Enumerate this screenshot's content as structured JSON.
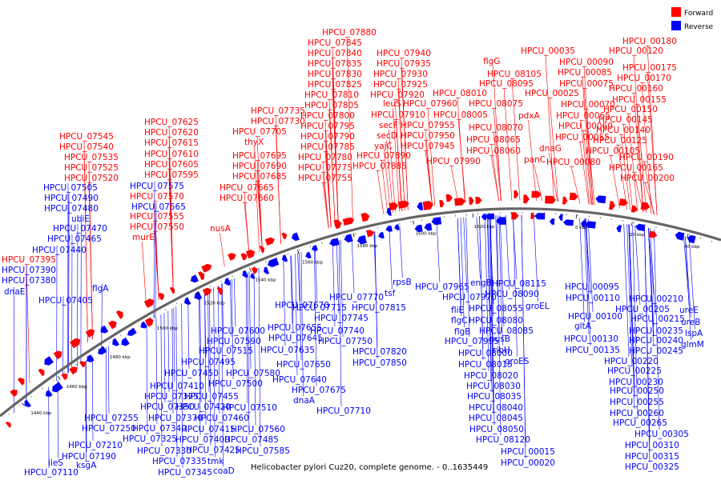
{
  "caption": "Helicobacter pylori Cuz20, complete genome. - 0..1635449",
  "legend": [
    {
      "label": "Forward",
      "color": "#ff0000"
    },
    {
      "label": "Reverse",
      "color": "#0000ff"
    }
  ],
  "colors": {
    "forward": "#ff0000",
    "reverse": "#0000ff",
    "backbone": "#666666"
  },
  "scale_labels": [
    "1440 kbp",
    "1460 kbp",
    "1480 kbp",
    "1500 kbp",
    "1520 kbp",
    "1540 kbp",
    "1560 kbp",
    "1580 kbp",
    "1600 kbp",
    "1620 kbp",
    "0 kbp",
    "20 kbp",
    "40 kbp",
    "60 kbp"
  ],
  "forward_labels": [
    "HPCU_07880",
    "HPCU_07845",
    "HPCU_07840",
    "HPCU_07835",
    "HPCU_07830",
    "HPCU_07825",
    "HPCU_07810",
    "HPCU_07805",
    "HPCU_07800",
    "HPCU_07795",
    "HPCU_07790",
    "HPCU_07785",
    "HPCU_07780",
    "HPCU_07775",
    "HPCU_07755",
    "HPCU_07735",
    "HPCU_07730",
    "HPCU_07705",
    "thyX",
    "HPCU_07695",
    "HPCU_07690",
    "HPCU_07685",
    "HPCU_07665",
    "HPCU_07660",
    "HPCU_07625",
    "HPCU_07620",
    "HPCU_07615",
    "HPCU_07610",
    "HPCU_07605",
    "HPCU_07595",
    "HPCU_07570",
    "HPCU_07555",
    "HPCU_07550",
    "murE",
    "nusA",
    "HPCU_07545",
    "HPCU_07540",
    "HPCU_07535",
    "HPCU_07525",
    "HPCU_07520",
    "HPCU_07395",
    "HPCU_07940",
    "HPCU_07935",
    "HPCU_07930",
    "HPCU_07925",
    "HPCU_07920",
    "leuS",
    "HPCU_07910",
    "secF",
    "secD",
    "yajC",
    "HPCU_07890",
    "HPCU_07885",
    "HPCU_07960",
    "HPCU_07955",
    "HPCU_07950",
    "HPCU_07945",
    "HPCU_08010",
    "HPCU_08005",
    "HPCU_07990",
    "flgG",
    "HPCU_08105",
    "HPCU_08095",
    "HPCU_08075",
    "HPCU_08070",
    "HPCU_08065",
    "HPCU_08060",
    "HPCU_00035",
    "HPCU_00025",
    "pdxA",
    "HPCU_00090",
    "HPCU_00085",
    "HPCU_00075",
    "HPCU_00070",
    "HPCU_00065",
    "HPCU_00060",
    "HPCU_00055",
    "dnaG",
    "panC",
    "HPCU_00080",
    "HPCU_00180",
    "HPCU_00120",
    "HPCU_00175",
    "HPCU_00170",
    "HPCU_00160",
    "HPCU_00155",
    "HPCU_00150",
    "HPCU_00145",
    "HPCU_00140",
    "HPCU_00125",
    "HPCU_00105",
    "HPCU_00190",
    "HPCU_00165",
    "HPCU_00200"
  ],
  "reverse_labels": [
    "HPCU_07575",
    "HPCU_07565",
    "HPCU_07505",
    "HPCU_07490",
    "HPCU_07480",
    "ubiE",
    "HPCU_07470",
    "HPCU_07465",
    "HPCU_07440",
    "HPCU_07390",
    "HPCU_07380",
    "dnaE",
    "flgA",
    "HPCU_07405",
    "HPCU_07770",
    "HPCU_07815",
    "HPCU_07715",
    "HPCU_07745",
    "HPCU_07670",
    "HPCU_07655",
    "HPCU_07740",
    "HPCU_07645",
    "HPCU_07750",
    "HPCU_07635",
    "HPCU_07820",
    "HPCU_07650",
    "HPCU_07850",
    "HPCU_07640",
    "HPCU_07675",
    "dnaA",
    "HPCU_07710",
    "HPCU_07600",
    "HPCU_07590",
    "HPCU_07515",
    "HPCU_07495",
    "HPCU_07580",
    "HPCU_07450",
    "HPCU_07500",
    "HPCU_07410",
    "HPCU_07455",
    "HPCU_07375",
    "HPCU_07510",
    "HPCU_07350",
    "HPCU_07420",
    "HPCU_07460",
    "HPCU_07255",
    "HPCU_07370",
    "HPCU_07250",
    "HPCU_07340",
    "HPCU_07415",
    "HPCU_07560",
    "HPCU_07325",
    "HPCU_07400",
    "HPCU_07485",
    "HPCU_07210",
    "HPCU_07330",
    "HPCU_07425",
    "HPCU_07585",
    "HPCU_07190",
    "HPCU_07335",
    "tmk",
    "ileS",
    "ksgA",
    "HPCU_07345",
    "coaD",
    "HPCU_07110",
    "rpsB",
    "tsf",
    "HPCU_07965",
    "engB",
    "HPCU_08115",
    "HPCU_07970",
    "HPCU_08090",
    "fliE",
    "HPCU_08055",
    "flgC",
    "HPCU_08080",
    "flgB",
    "HPCU_08085",
    "HPCU_07995",
    "nusB",
    "HPCU_08000",
    "ribH",
    "HPCU_08015",
    "groES",
    "HPCU_08020",
    "HPCU_08030",
    "HPCU_08035",
    "HPCU_08040",
    "HPCU_08045",
    "HPCU_08050",
    "HPCU_08120",
    "HPCU_00015",
    "HPCU_00020",
    "groEL",
    "HPCU_00095",
    "HPCU_00110",
    "HPCU_00100",
    "gltA",
    "HPCU_00130",
    "HPCU_00135",
    "HPCU_00210",
    "HPCU_00205",
    "HPCU_00215",
    "HPCU_00235",
    "HPCU_00240",
    "HPCU_00245",
    "HPCU_00220",
    "HPCU_00225",
    "HPCU_00230",
    "HPCU_00250",
    "HPCU_00255",
    "HPCU_00260",
    "HPCU_00265",
    "HPCU_00305",
    "HPCU_00310",
    "HPCU_00315",
    "HPCU_00325",
    "ureE",
    "ureB",
    "lspA",
    "glmM"
  ]
}
